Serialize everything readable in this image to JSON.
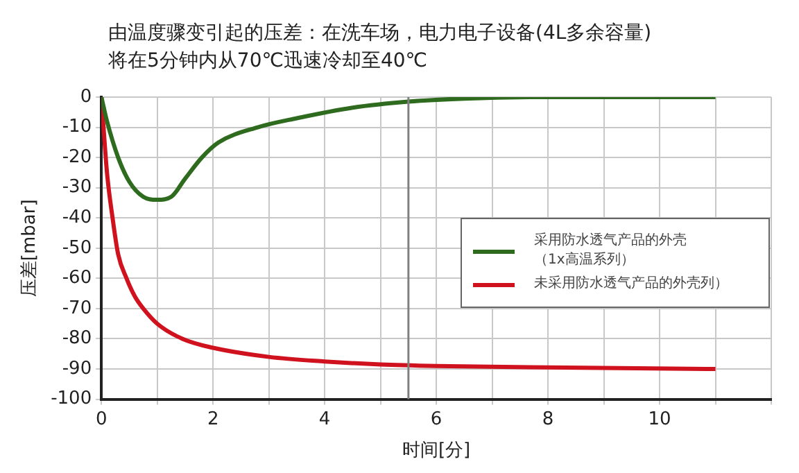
{
  "chart_data": {
    "type": "line",
    "title": "由温度骤变引起的压差：在洗车场，电力电子设备(4L多余容量)\n将在5分钟内从70℃迅速冷却至40℃",
    "xlabel": "时间[分]",
    "ylabel": "压差[mbar]",
    "xlim": [
      0,
      12
    ],
    "xticks": [
      0,
      {
        "value": 1,
        "label": null
      },
      2,
      {
        "value": 3,
        "label": null
      },
      4,
      {
        "value": 5,
        "label": null
      },
      6,
      {
        "value": 7,
        "label": null
      },
      8,
      {
        "value": 9,
        "label": null
      },
      10,
      {
        "value": 11,
        "label": null
      },
      {
        "value": 12,
        "label": null
      }
    ],
    "ylim": [
      -100,
      0
    ],
    "yticks": [
      -100,
      -90,
      -80,
      -70,
      -60,
      -50,
      -40,
      -30,
      -20,
      -10,
      0
    ],
    "grid": true,
    "legend": "right",
    "marker": "none",
    "line_style": "solid",
    "ref_lines": [
      {
        "axis": "x",
        "value": 5.5,
        "color": "#808080"
      }
    ],
    "series": [
      {
        "name": "采用防水透气产品的外壳（1x高温系列）",
        "color": "#2e6b1e",
        "x": [
          0,
          0.1,
          0.3,
          0.5,
          0.75,
          1,
          1.25,
          1.5,
          1.8,
          2.1,
          2.8,
          3.5,
          4.5,
          5.5,
          6.5,
          8,
          11
        ],
        "values": [
          0,
          -8,
          -20,
          -28,
          -33,
          -34,
          -33,
          -27,
          -20,
          -15,
          -10,
          -7,
          -3.5,
          -1.5,
          -0.5,
          0,
          0
        ]
      },
      {
        "name": "未采用防水透气产品的外壳列）",
        "color": "#d0121f",
        "x": [
          0,
          0.1,
          0.2,
          0.3,
          0.45,
          0.6,
          0.75,
          1,
          1.45,
          2,
          3,
          4,
          5,
          6,
          8,
          11
        ],
        "values": [
          0,
          -25,
          -40,
          -52,
          -60,
          -66,
          -70,
          -75,
          -80,
          -83,
          -86,
          -87.5,
          -88.5,
          -89,
          -89.5,
          -90
        ]
      }
    ]
  }
}
